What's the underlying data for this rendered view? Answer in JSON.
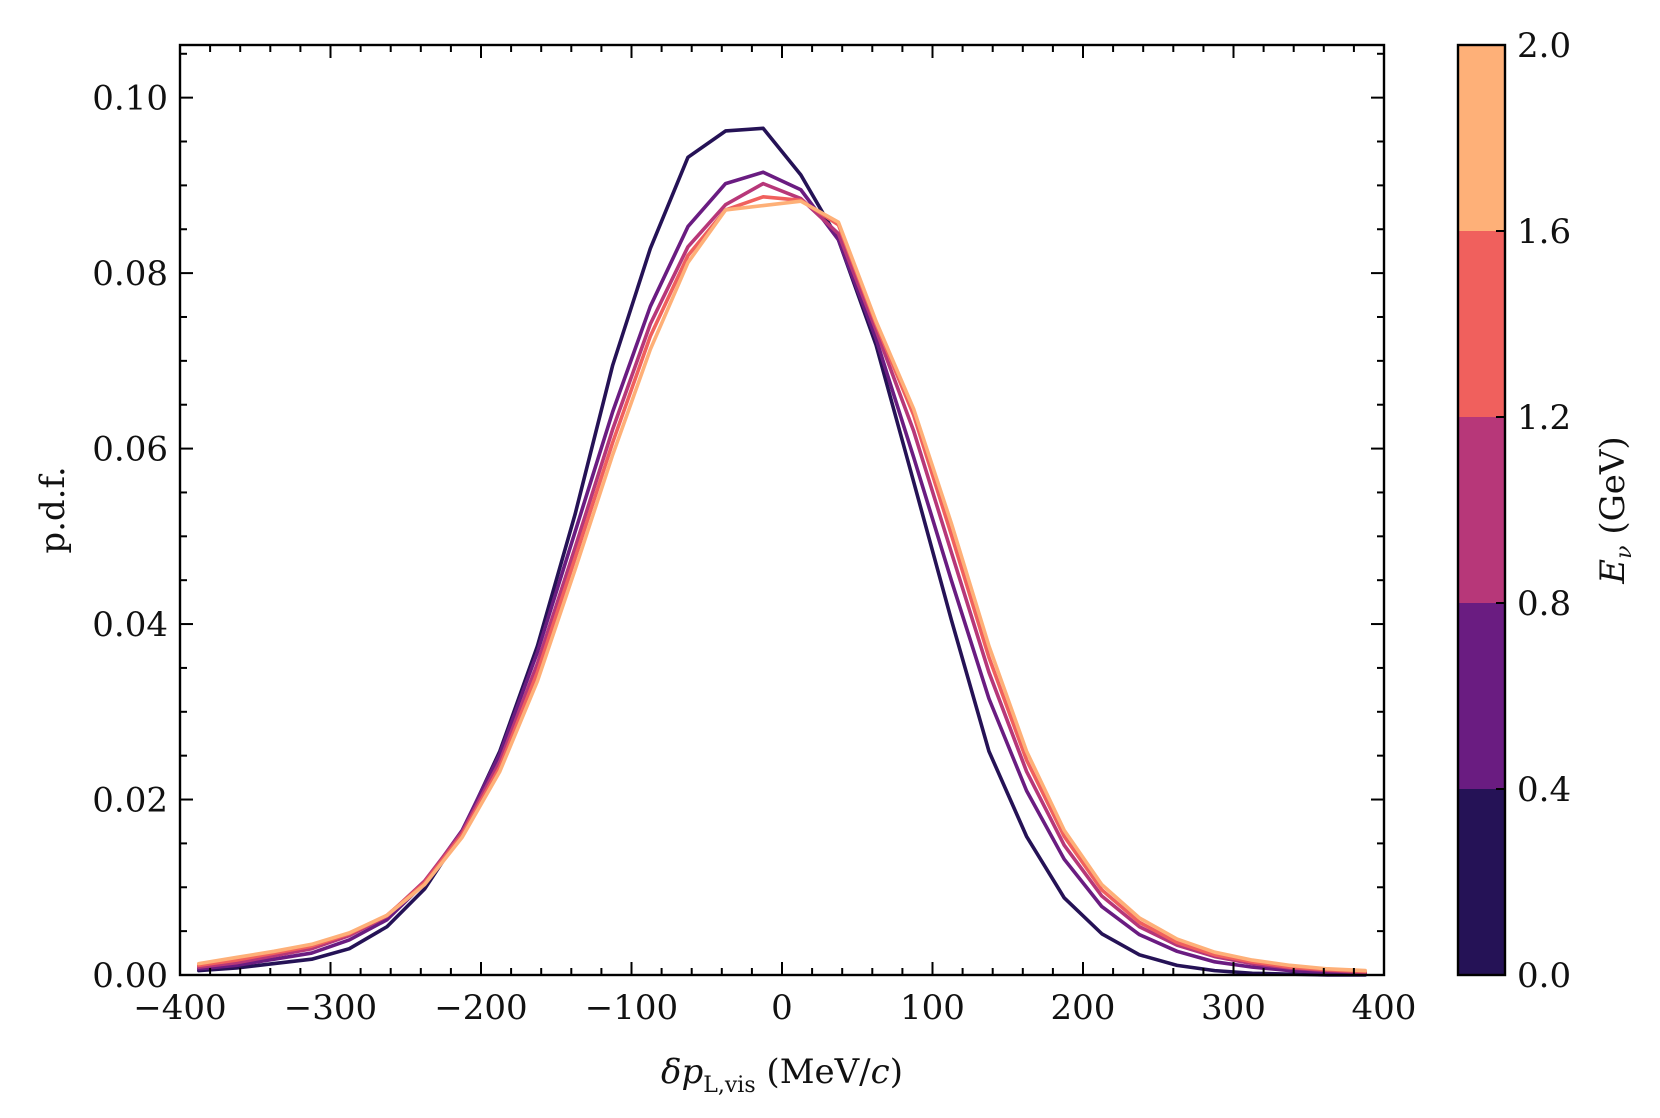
{
  "chart_data": {
    "type": "line",
    "title": "",
    "xlabel": "δp_L,vis (MeV/c)",
    "ylabel": "p.d.f.",
    "xlim": [
      -400,
      400
    ],
    "ylim": [
      0,
      0.106
    ],
    "xticks": [
      -400,
      -300,
      -200,
      -100,
      0,
      100,
      200,
      300,
      400
    ],
    "xtick_labels": [
      "−400",
      "−300",
      "−200",
      "−100",
      "0",
      "100",
      "200",
      "300",
      "400"
    ],
    "yticks": [
      0,
      0.02,
      0.04,
      0.06,
      0.08,
      0.1
    ],
    "ytick_labels": [
      "0.00",
      "0.02",
      "0.04",
      "0.06",
      "0.08",
      "0.10"
    ],
    "grid": false,
    "x": [
      -387.5,
      -362.5,
      -337.5,
      -312.5,
      -287.5,
      -262.5,
      -237.5,
      -212.5,
      -187.5,
      -162.5,
      -137.5,
      -112.5,
      -87.5,
      -62.5,
      -37.5,
      -12.5,
      12.5,
      37.5,
      62.5,
      87.5,
      112.5,
      137.5,
      162.5,
      187.5,
      212.5,
      237.5,
      262.5,
      287.5,
      312.5,
      337.5,
      362.5,
      387.5
    ],
    "series": [
      {
        "name": "0.0–0.4 GeV",
        "color": "#251256",
        "values": [
          0.0005,
          0.0008,
          0.0013,
          0.0018,
          0.003,
          0.0055,
          0.0098,
          0.0163,
          0.0255,
          0.0375,
          0.0525,
          0.0695,
          0.0828,
          0.0932,
          0.0962,
          0.0965,
          0.0912,
          0.0838,
          0.0718,
          0.0562,
          0.0405,
          0.0255,
          0.0158,
          0.0088,
          0.0047,
          0.0023,
          0.0011,
          0.0005,
          0.0002,
          0.0001,
          0.0,
          0.0
        ]
      },
      {
        "name": "0.4–0.8 GeV",
        "color": "#6a1c81",
        "values": [
          0.0007,
          0.0011,
          0.0018,
          0.0025,
          0.004,
          0.0063,
          0.0105,
          0.0165,
          0.0252,
          0.0368,
          0.0505,
          0.0642,
          0.0762,
          0.0853,
          0.0902,
          0.0915,
          0.0895,
          0.0838,
          0.0725,
          0.059,
          0.045,
          0.0315,
          0.021,
          0.0132,
          0.0078,
          0.0046,
          0.0027,
          0.0015,
          0.0009,
          0.0005,
          0.0003,
          0.0002
        ]
      },
      {
        "name": "0.8–1.2 GeV",
        "color": "#b73779",
        "values": [
          0.0009,
          0.0014,
          0.0022,
          0.003,
          0.0045,
          0.0067,
          0.0107,
          0.0163,
          0.0243,
          0.0355,
          0.0487,
          0.0622,
          0.0742,
          0.083,
          0.0878,
          0.0902,
          0.0885,
          0.0845,
          0.0735,
          0.062,
          0.0482,
          0.0345,
          0.0232,
          0.0148,
          0.009,
          0.0055,
          0.0034,
          0.0021,
          0.0013,
          0.0008,
          0.0005,
          0.0003
        ]
      },
      {
        "name": "1.2–1.6 GeV",
        "color": "#f0605d",
        "values": [
          0.0011,
          0.0017,
          0.0025,
          0.0033,
          0.0047,
          0.0068,
          0.0105,
          0.016,
          0.0237,
          0.0345,
          0.0475,
          0.0607,
          0.0728,
          0.082,
          0.0872,
          0.0887,
          0.0883,
          0.0855,
          0.0742,
          0.0638,
          0.0502,
          0.0362,
          0.0245,
          0.0158,
          0.0097,
          0.006,
          0.0037,
          0.0023,
          0.0015,
          0.0009,
          0.0006,
          0.0004
        ]
      },
      {
        "name": "1.6–2.0 GeV",
        "color": "#feb078",
        "values": [
          0.0013,
          0.002,
          0.0027,
          0.0035,
          0.0048,
          0.0068,
          0.0103,
          0.0157,
          0.0232,
          0.0335,
          0.0462,
          0.0593,
          0.0713,
          0.0812,
          0.0872,
          0.0877,
          0.0882,
          0.0858,
          0.0745,
          0.0645,
          0.0515,
          0.0375,
          0.0255,
          0.0165,
          0.0103,
          0.0065,
          0.0041,
          0.0026,
          0.0017,
          0.0011,
          0.0007,
          0.0005
        ]
      }
    ],
    "colorbar": {
      "label": "E_ν (GeV)",
      "range": [
        0.0,
        2.0
      ],
      "boundaries": [
        0.0,
        0.4,
        0.8,
        1.2,
        1.6,
        2.0
      ],
      "tick_labels": [
        "0.0",
        "0.4",
        "0.8",
        "1.2",
        "1.6",
        "2.0"
      ],
      "colors": [
        "#251256",
        "#6a1c81",
        "#b73779",
        "#f0605d",
        "#feb078"
      ]
    }
  }
}
